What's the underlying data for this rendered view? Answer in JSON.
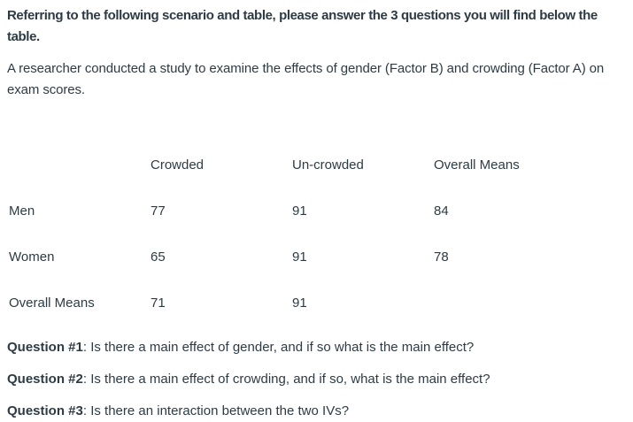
{
  "page": {
    "background": "#ffffff",
    "text_color": "#2d3b45"
  },
  "intro": {
    "heading": "Referring to the following scenario and table, please answer the 3 questions you will find below the table.",
    "description": "A researcher conducted a study to examine the effects of gender (Factor B) and crowding (Factor A) on exam scores."
  },
  "table": {
    "headers": [
      "",
      "Crowded",
      "Un-crowded",
      "Overall Means"
    ],
    "rows": [
      {
        "label": "Men",
        "crowded": "77",
        "uncrowded": "91",
        "overall": "84"
      },
      {
        "label": "Women",
        "crowded": "65",
        "uncrowded": "91",
        "overall": "78"
      },
      {
        "label": "Overall Means",
        "crowded": "71",
        "uncrowded": "91",
        "overall": ""
      }
    ]
  },
  "questions": [
    {
      "label": "Question #1",
      "text": ": Is there a main effect of gender, and if so what is the main effect?"
    },
    {
      "label": "Question #2",
      "text": ": Is there a main effect of crowding, and if so, what is the main effect?"
    },
    {
      "label": "Question #3",
      "text": ": Is there an interaction between the two IVs?"
    }
  ]
}
